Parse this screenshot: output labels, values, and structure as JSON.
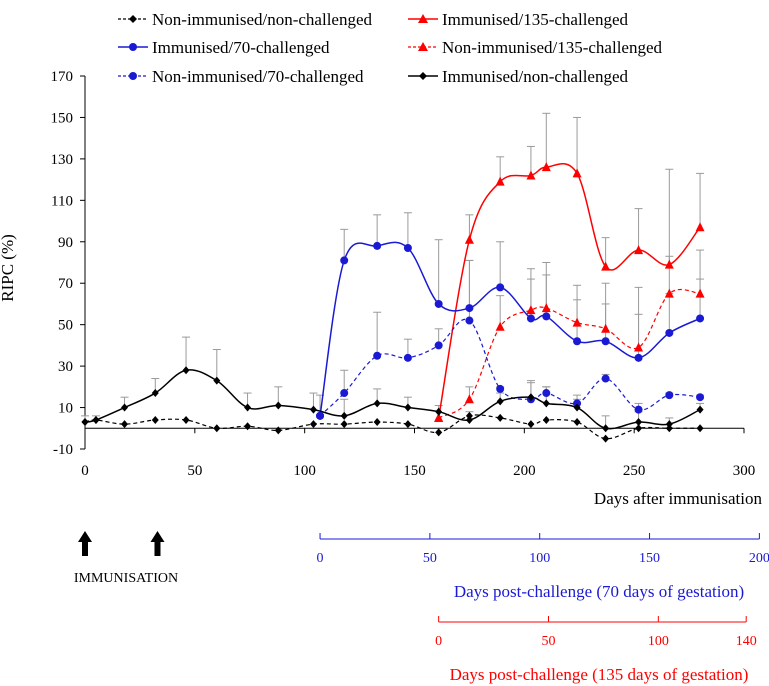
{
  "chart_data": {
    "type": "line",
    "title": "",
    "xlabel": "Days after immunisation",
    "ylabel": "RIPC (%)",
    "xlim": [
      0,
      300
    ],
    "ylim": [
      -10,
      170
    ],
    "x_ticks": [
      0,
      50,
      100,
      150,
      200,
      250,
      300
    ],
    "y_ticks": [
      -10,
      10,
      30,
      50,
      70,
      90,
      110,
      130,
      150,
      170
    ],
    "grid": false,
    "legend_placement": "top",
    "series": [
      {
        "name": "Non-immunised/non-challenged",
        "color": "#000000",
        "dashed": true,
        "marker": "diamond",
        "points": [
          [
            0,
            3
          ],
          [
            5,
            4
          ],
          [
            18,
            2
          ],
          [
            32,
            4
          ],
          [
            46,
            4
          ],
          [
            60,
            0
          ],
          [
            74,
            1
          ],
          [
            88,
            -1
          ],
          [
            104,
            2
          ],
          [
            118,
            2
          ],
          [
            133,
            3
          ],
          [
            147,
            2
          ],
          [
            161,
            -2
          ],
          [
            175,
            6
          ],
          [
            189,
            5
          ],
          [
            203,
            2
          ],
          [
            210,
            4
          ],
          [
            224,
            3
          ],
          [
            237,
            -5
          ],
          [
            252,
            0
          ],
          [
            266,
            0
          ],
          [
            280,
            0
          ]
        ]
      },
      {
        "name": "Immunised/135-challenged",
        "color": "#ff0000",
        "dashed": false,
        "marker": "triangle",
        "points": [
          [
            161,
            5
          ],
          [
            175,
            91
          ],
          [
            189,
            119
          ],
          [
            203,
            122
          ],
          [
            210,
            126
          ],
          [
            224,
            123
          ],
          [
            237,
            78
          ],
          [
            252,
            86
          ],
          [
            266,
            79
          ],
          [
            280,
            97
          ]
        ],
        "errors": [
          [
            175,
            103
          ],
          [
            189,
            131
          ],
          [
            203,
            136
          ],
          [
            210,
            152
          ],
          [
            224,
            150
          ],
          [
            237,
            92
          ],
          [
            252,
            106
          ],
          [
            266,
            125
          ],
          [
            280,
            123
          ]
        ]
      },
      {
        "name": "Immunised/70-challenged",
        "color": "#1a1ad4",
        "dashed": false,
        "marker": "circle",
        "points": [
          [
            107,
            6
          ],
          [
            118,
            81
          ],
          [
            133,
            88
          ],
          [
            147,
            87
          ],
          [
            161,
            60
          ],
          [
            175,
            58
          ],
          [
            189,
            68
          ],
          [
            203,
            53
          ],
          [
            210,
            54
          ],
          [
            224,
            42
          ],
          [
            237,
            42
          ],
          [
            252,
            34
          ],
          [
            266,
            46
          ],
          [
            280,
            53
          ]
        ],
        "errors": [
          [
            107,
            16
          ],
          [
            118,
            96
          ],
          [
            133,
            103
          ],
          [
            147,
            104
          ],
          [
            161,
            91
          ],
          [
            175,
            81
          ],
          [
            189,
            90
          ],
          [
            203,
            77
          ],
          [
            210,
            74
          ],
          [
            224,
            62
          ],
          [
            237,
            60
          ],
          [
            252,
            55
          ],
          [
            266,
            65
          ],
          [
            280,
            86
          ]
        ]
      },
      {
        "name": "Non-immunised/135-challenged",
        "color": "#ff0000",
        "dashed": true,
        "marker": "triangle",
        "points": [
          [
            161,
            5
          ],
          [
            175,
            14
          ],
          [
            189,
            49
          ],
          [
            203,
            57
          ],
          [
            210,
            58
          ],
          [
            224,
            51
          ],
          [
            237,
            48
          ],
          [
            252,
            39
          ],
          [
            266,
            65
          ],
          [
            280,
            65
          ]
        ],
        "errors": [
          [
            175,
            20
          ],
          [
            189,
            64
          ],
          [
            203,
            72
          ],
          [
            210,
            80
          ],
          [
            224,
            69
          ],
          [
            237,
            70
          ],
          [
            252,
            68
          ],
          [
            266,
            83
          ],
          [
            280,
            72
          ]
        ]
      },
      {
        "name": "Non-immunised/70-challenged",
        "color": "#1a1ad4",
        "dashed": true,
        "marker": "circle",
        "points": [
          [
            107,
            6
          ],
          [
            118,
            17
          ],
          [
            133,
            35
          ],
          [
            147,
            34
          ],
          [
            161,
            40
          ],
          [
            175,
            52
          ],
          [
            189,
            19
          ],
          [
            203,
            14
          ],
          [
            210,
            17
          ],
          [
            224,
            12
          ],
          [
            237,
            24
          ],
          [
            252,
            9
          ],
          [
            266,
            16
          ],
          [
            280,
            15
          ]
        ],
        "errors": [
          [
            118,
            28
          ],
          [
            133,
            56
          ],
          [
            147,
            43
          ],
          [
            161,
            48
          ],
          [
            175,
            81
          ],
          [
            189,
            20
          ],
          [
            203,
            23
          ],
          [
            210,
            20
          ],
          [
            224,
            14
          ],
          [
            237,
            26
          ],
          [
            252,
            12
          ],
          [
            266,
            17
          ],
          [
            280,
            16
          ]
        ]
      },
      {
        "name": "Immunised/non-challenged",
        "color": "#000000",
        "dashed": false,
        "marker": "diamond",
        "points": [
          [
            0,
            3
          ],
          [
            5,
            4
          ],
          [
            18,
            10
          ],
          [
            32,
            17
          ],
          [
            46,
            28
          ],
          [
            60,
            23
          ],
          [
            74,
            10
          ],
          [
            88,
            11
          ],
          [
            104,
            9
          ],
          [
            118,
            6
          ],
          [
            133,
            12
          ],
          [
            147,
            10
          ],
          [
            161,
            8
          ],
          [
            175,
            4
          ],
          [
            189,
            13
          ],
          [
            203,
            15
          ],
          [
            210,
            12
          ],
          [
            224,
            10
          ],
          [
            237,
            0
          ],
          [
            252,
            3
          ],
          [
            266,
            2
          ],
          [
            280,
            9
          ]
        ],
        "errors": [
          [
            0,
            6
          ],
          [
            5,
            6
          ],
          [
            18,
            15
          ],
          [
            32,
            24
          ],
          [
            46,
            44
          ],
          [
            60,
            38
          ],
          [
            74,
            17
          ],
          [
            88,
            20
          ],
          [
            104,
            17
          ],
          [
            118,
            14
          ],
          [
            133,
            19
          ],
          [
            147,
            15
          ],
          [
            161,
            11
          ],
          [
            175,
            8
          ],
          [
            189,
            17
          ],
          [
            203,
            22
          ],
          [
            210,
            20
          ],
          [
            224,
            16
          ],
          [
            237,
            6
          ],
          [
            252,
            8
          ],
          [
            266,
            5
          ],
          [
            280,
            12
          ]
        ]
      }
    ],
    "immunisation": {
      "label": "IMMUNISATION",
      "days": [
        0,
        33
      ]
    },
    "secondary_axes": [
      {
        "label": "Days post-challenge (70 days of gestation)",
        "color": "#1a1ad4",
        "ticks": [
          0,
          50,
          100,
          150,
          200
        ],
        "offset_days": 107
      },
      {
        "label": "Days post-challenge (135 days of gestation)",
        "color": "#ff0000",
        "ticks": [
          0,
          50,
          100,
          140
        ],
        "offset_days": 161
      }
    ]
  }
}
